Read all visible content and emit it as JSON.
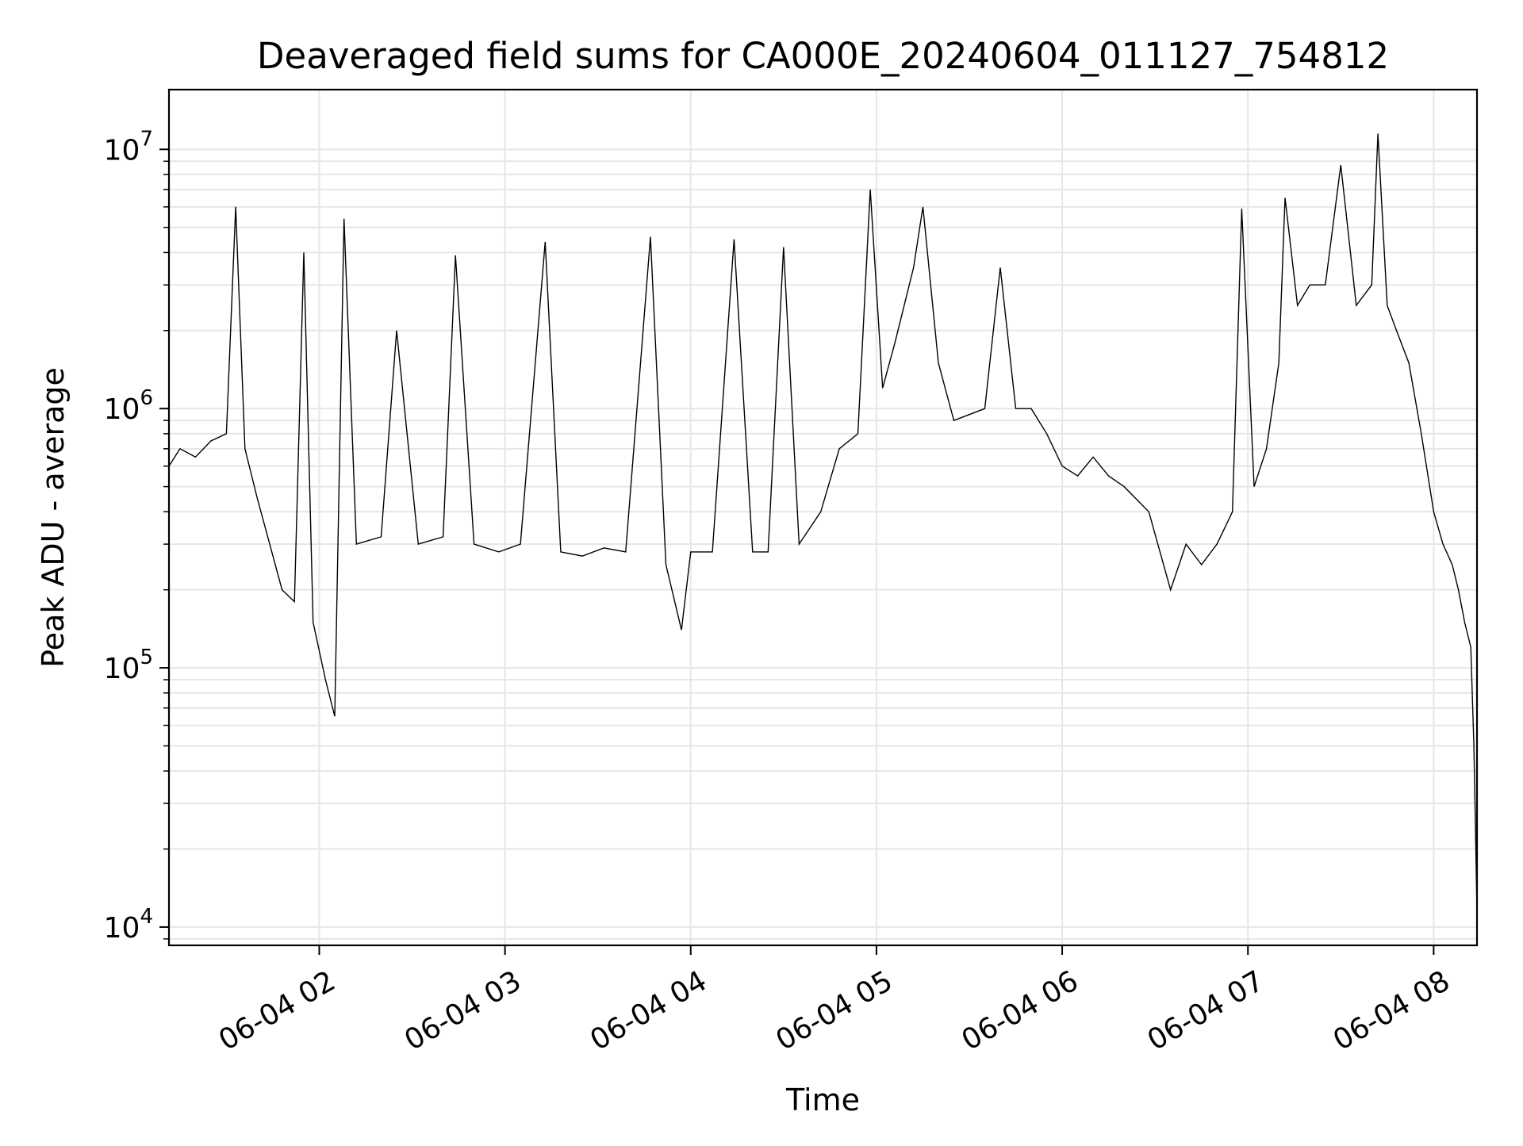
{
  "chart_data": {
    "type": "line",
    "title": "Deaveraged field sums for CA000E_20240604_011127_754812",
    "xlabel": "Time",
    "ylabel": "Peak ADU - average",
    "yscale": "log",
    "grid": true,
    "x_range": [
      "2024-06-04 01:11:27",
      "2024-06-04 08:14"
    ],
    "ylim": [
      8500,
      17000000
    ],
    "x_ticks": [
      {
        "t": "2024-06-04 02:00",
        "label": "06-04 02"
      },
      {
        "t": "2024-06-04 03:00",
        "label": "06-04 03"
      },
      {
        "t": "2024-06-04 04:00",
        "label": "06-04 04"
      },
      {
        "t": "2024-06-04 05:00",
        "label": "06-04 05"
      },
      {
        "t": "2024-06-04 06:00",
        "label": "06-04 06"
      },
      {
        "t": "2024-06-04 07:00",
        "label": "06-04 07"
      },
      {
        "t": "2024-06-04 08:00",
        "label": "06-04 08"
      }
    ],
    "y_ticks": [
      {
        "value": 10000,
        "base": "10",
        "exp": "4"
      },
      {
        "value": 100000,
        "base": "10",
        "exp": "5"
      },
      {
        "value": 1000000,
        "base": "10",
        "exp": "6"
      },
      {
        "value": 10000000,
        "base": "10",
        "exp": "7"
      }
    ],
    "series": [
      {
        "color": "#000000",
        "points": [
          [
            "2024-06-04 01:11:27",
            600000
          ],
          [
            "2024-06-04 01:15",
            700000
          ],
          [
            "2024-06-04 01:20",
            650000
          ],
          [
            "2024-06-04 01:25",
            750000
          ],
          [
            "2024-06-04 01:30",
            800000
          ],
          [
            "2024-06-04 01:33",
            6000000
          ],
          [
            "2024-06-04 01:36",
            700000
          ],
          [
            "2024-06-04 01:40",
            450000
          ],
          [
            "2024-06-04 01:44",
            300000
          ],
          [
            "2024-06-04 01:48",
            200000
          ],
          [
            "2024-06-04 01:52",
            180000
          ],
          [
            "2024-06-04 01:55",
            4000000
          ],
          [
            "2024-06-04 01:58",
            150000
          ],
          [
            "2024-06-04 02:02",
            90000
          ],
          [
            "2024-06-04 02:05",
            65000
          ],
          [
            "2024-06-04 02:08",
            5400000
          ],
          [
            "2024-06-04 02:12",
            300000
          ],
          [
            "2024-06-04 02:20",
            320000
          ],
          [
            "2024-06-04 02:25",
            2000000
          ],
          [
            "2024-06-04 02:32",
            300000
          ],
          [
            "2024-06-04 02:40",
            320000
          ],
          [
            "2024-06-04 02:44",
            3900000
          ],
          [
            "2024-06-04 02:50",
            300000
          ],
          [
            "2024-06-04 02:58",
            280000
          ],
          [
            "2024-06-04 03:05",
            300000
          ],
          [
            "2024-06-04 03:13",
            4400000
          ],
          [
            "2024-06-04 03:18",
            280000
          ],
          [
            "2024-06-04 03:25",
            270000
          ],
          [
            "2024-06-04 03:32",
            290000
          ],
          [
            "2024-06-04 03:39",
            280000
          ],
          [
            "2024-06-04 03:47",
            4600000
          ],
          [
            "2024-06-04 03:52",
            250000
          ],
          [
            "2024-06-04 03:57",
            140000
          ],
          [
            "2024-06-04 04:00",
            280000
          ],
          [
            "2024-06-04 04:07",
            280000
          ],
          [
            "2024-06-04 04:14",
            4500000
          ],
          [
            "2024-06-04 04:20",
            280000
          ],
          [
            "2024-06-04 04:25",
            280000
          ],
          [
            "2024-06-04 04:30",
            4200000
          ],
          [
            "2024-06-04 04:35",
            300000
          ],
          [
            "2024-06-04 04:42",
            400000
          ],
          [
            "2024-06-04 04:48",
            700000
          ],
          [
            "2024-06-04 04:54",
            800000
          ],
          [
            "2024-06-04 04:58",
            7000000
          ],
          [
            "2024-06-04 05:02",
            1200000
          ],
          [
            "2024-06-04 05:06",
            1800000
          ],
          [
            "2024-06-04 05:12",
            3500000
          ],
          [
            "2024-06-04 05:15",
            6000000
          ],
          [
            "2024-06-04 05:20",
            1500000
          ],
          [
            "2024-06-04 05:25",
            900000
          ],
          [
            "2024-06-04 05:35",
            1000000
          ],
          [
            "2024-06-04 05:40",
            3500000
          ],
          [
            "2024-06-04 05:45",
            1000000
          ],
          [
            "2024-06-04 05:50",
            1000000
          ],
          [
            "2024-06-04 05:55",
            800000
          ],
          [
            "2024-06-04 06:00",
            600000
          ],
          [
            "2024-06-04 06:05",
            550000
          ],
          [
            "2024-06-04 06:10",
            650000
          ],
          [
            "2024-06-04 06:15",
            550000
          ],
          [
            "2024-06-04 06:20",
            500000
          ],
          [
            "2024-06-04 06:28",
            400000
          ],
          [
            "2024-06-04 06:35",
            200000
          ],
          [
            "2024-06-04 06:40",
            300000
          ],
          [
            "2024-06-04 06:45",
            250000
          ],
          [
            "2024-06-04 06:50",
            300000
          ],
          [
            "2024-06-04 06:55",
            400000
          ],
          [
            "2024-06-04 06:58",
            5900000
          ],
          [
            "2024-06-04 07:02",
            500000
          ],
          [
            "2024-06-04 07:06",
            700000
          ],
          [
            "2024-06-04 07:10",
            1500000
          ],
          [
            "2024-06-04 07:12",
            6500000
          ],
          [
            "2024-06-04 07:16",
            2500000
          ],
          [
            "2024-06-04 07:20",
            3000000
          ],
          [
            "2024-06-04 07:25",
            3000000
          ],
          [
            "2024-06-04 07:30",
            8700000
          ],
          [
            "2024-06-04 07:35",
            2500000
          ],
          [
            "2024-06-04 07:40",
            3000000
          ],
          [
            "2024-06-04 07:42",
            11500000
          ],
          [
            "2024-06-04 07:45",
            2500000
          ],
          [
            "2024-06-04 07:48",
            2000000
          ],
          [
            "2024-06-04 07:52",
            1500000
          ],
          [
            "2024-06-04 07:56",
            800000
          ],
          [
            "2024-06-04 08:00",
            400000
          ],
          [
            "2024-06-04 08:03",
            300000
          ],
          [
            "2024-06-04 08:06",
            250000
          ],
          [
            "2024-06-04 08:08",
            200000
          ],
          [
            "2024-06-04 08:10",
            150000
          ],
          [
            "2024-06-04 08:12",
            120000
          ],
          [
            "2024-06-04 08:13",
            50000
          ],
          [
            "2024-06-04 08:14",
            11500
          ]
        ]
      }
    ]
  }
}
